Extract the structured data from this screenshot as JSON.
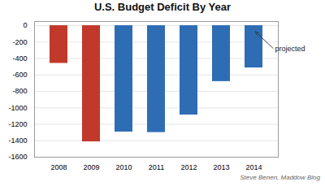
{
  "chart_data": {
    "type": "bar",
    "title": "U.S. Budget Deficit By Year",
    "categories": [
      "2008",
      "2009",
      "2010",
      "2011",
      "2012",
      "2013",
      "2014"
    ],
    "values": [
      -459,
      -1413,
      -1294,
      -1300,
      -1087,
      -680,
      -514
    ],
    "colors": [
      "#c0392b",
      "#c0392b",
      "#2e6db4",
      "#2e6db4",
      "#2e6db4",
      "#2e6db4",
      "#2e6db4"
    ],
    "ylim": [
      -1600,
      50
    ],
    "yticks": [
      0,
      -200,
      -400,
      -600,
      -800,
      -1000,
      -1200,
      -1400,
      -1600
    ],
    "grid": true,
    "annotations": [
      {
        "text": "projected",
        "category": "2014"
      }
    ],
    "caption": "Steve Benen, Maddow Blog"
  }
}
